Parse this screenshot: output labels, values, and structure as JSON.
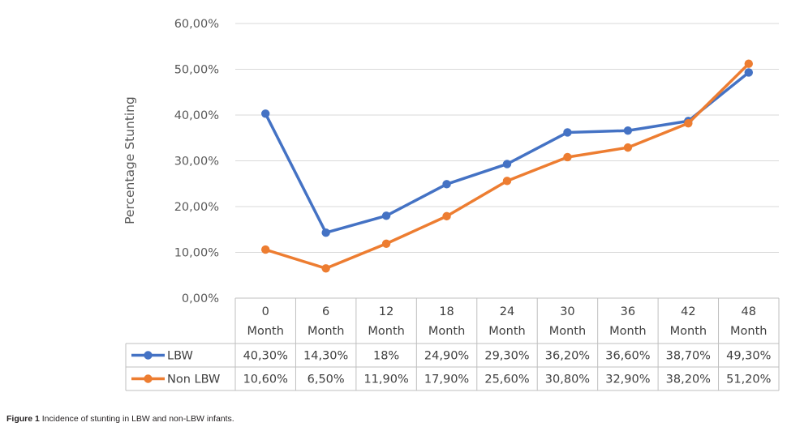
{
  "chart_data": {
    "type": "line",
    "title": "",
    "ylabel": "Percentage Stunting",
    "xlabel": "",
    "ylim": [
      0,
      60
    ],
    "yticks": [
      "0,00%",
      "10,00%",
      "20,00%",
      "30,00%",
      "40,00%",
      "50,00%",
      "60,00%"
    ],
    "grid": true,
    "legend": "data-table",
    "categories": [
      {
        "line1": "0",
        "line2": "Month"
      },
      {
        "line1": "6",
        "line2": "Month"
      },
      {
        "line1": "12",
        "line2": "Month"
      },
      {
        "line1": "18",
        "line2": "Month"
      },
      {
        "line1": "24",
        "line2": "Month"
      },
      {
        "line1": "30",
        "line2": "Month"
      },
      {
        "line1": "36",
        "line2": "Month"
      },
      {
        "line1": "42",
        "line2": "Month"
      },
      {
        "line1": "48",
        "line2": "Month"
      }
    ],
    "series": [
      {
        "name": "LBW",
        "color": "#4472c4",
        "values": [
          40.3,
          14.3,
          18,
          24.9,
          29.3,
          36.2,
          36.6,
          38.7,
          49.3
        ],
        "labels": [
          "40,30%",
          "14,30%",
          "18%",
          "24,90%",
          "29,30%",
          "36,20%",
          "36,60%",
          "38,70%",
          "49,30%"
        ]
      },
      {
        "name": "Non LBW",
        "color": "#ed7d31",
        "values": [
          10.6,
          6.5,
          11.9,
          17.9,
          25.6,
          30.8,
          32.9,
          38.2,
          51.2
        ],
        "labels": [
          "10,60%",
          "6,50%",
          "11,90%",
          "17,90%",
          "25,60%",
          "30,80%",
          "32,90%",
          "38,20%",
          "51,20%"
        ]
      }
    ]
  },
  "caption": {
    "label": "Figure 1",
    "text": " Incidence of stunting in LBW and non-LBW infants."
  },
  "colors": {
    "grid": "#d9d9d9",
    "table_border": "#bfbfbf"
  }
}
